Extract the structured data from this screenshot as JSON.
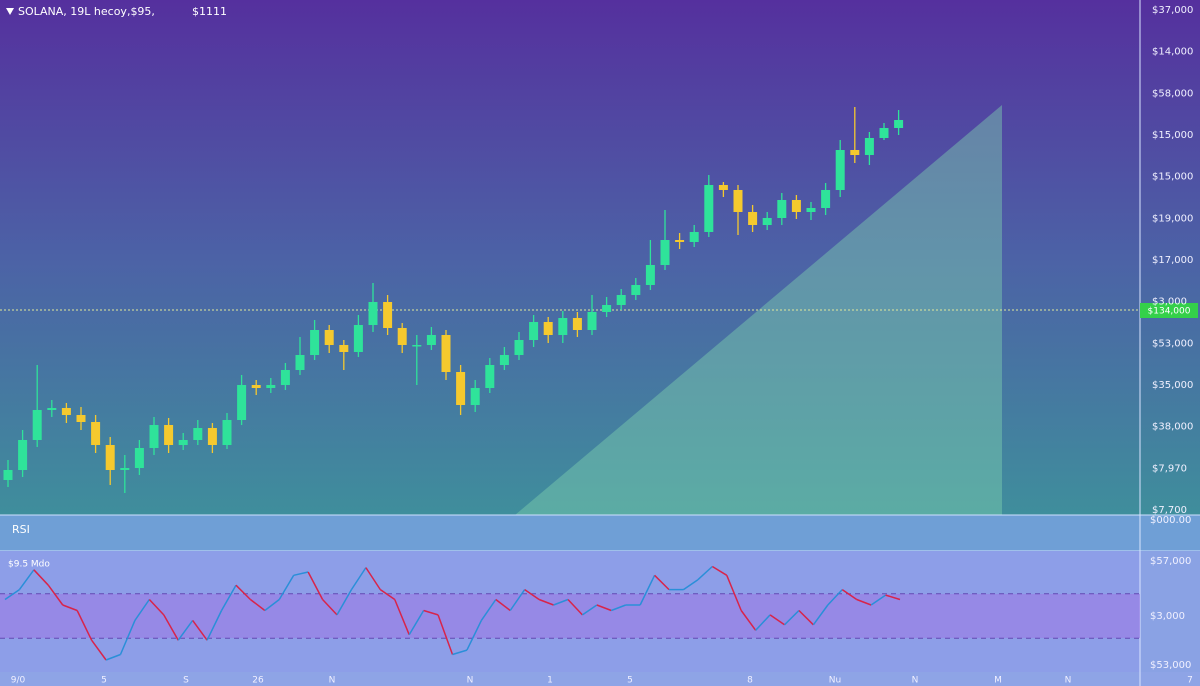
{
  "chart_data": [
    {
      "type": "candlestick",
      "title": "SOLANA, 19L hecoy,$95,",
      "subtitle": "$1111",
      "open": [
        35,
        45,
        75,
        105,
        107,
        100,
        93,
        70,
        45,
        47,
        67,
        90,
        70,
        75,
        87,
        70,
        95,
        130,
        127,
        130,
        145,
        160,
        185,
        170,
        163,
        190,
        213,
        187,
        170,
        170,
        180,
        143,
        110,
        127,
        150,
        160,
        175,
        193,
        180,
        197,
        185,
        203,
        210,
        220,
        230,
        250,
        275,
        273,
        283,
        330,
        325,
        303,
        290,
        297,
        315,
        303,
        307,
        325,
        365,
        360,
        377,
        387
      ],
      "high": [
        55,
        85,
        150,
        115,
        112,
        108,
        100,
        78,
        60,
        75,
        98,
        97,
        82,
        95,
        92,
        102,
        140,
        135,
        137,
        152,
        178,
        195,
        190,
        175,
        200,
        232,
        220,
        192,
        180,
        188,
        185,
        150,
        135,
        157,
        168,
        183,
        200,
        198,
        204,
        203,
        220,
        218,
        226,
        237,
        275,
        305,
        282,
        290,
        340,
        333,
        330,
        310,
        303,
        322,
        320,
        313,
        332,
        375,
        408,
        383,
        392,
        405
      ],
      "low": [
        28,
        38,
        68,
        98,
        92,
        85,
        62,
        30,
        22,
        40,
        60,
        62,
        65,
        70,
        62,
        66,
        90,
        120,
        122,
        125,
        140,
        155,
        162,
        145,
        158,
        183,
        180,
        162,
        130,
        165,
        135,
        100,
        103,
        122,
        145,
        155,
        168,
        172,
        172,
        178,
        180,
        198,
        205,
        215,
        225,
        245,
        266,
        268,
        278,
        318,
        280,
        283,
        285,
        290,
        296,
        295,
        300,
        318,
        352,
        350,
        375,
        380
      ],
      "close": [
        45,
        75,
        105,
        107,
        100,
        93,
        70,
        45,
        47,
        67,
        90,
        70,
        75,
        87,
        70,
        95,
        130,
        127,
        130,
        145,
        160,
        185,
        170,
        163,
        190,
        213,
        187,
        170,
        170,
        180,
        143,
        110,
        127,
        150,
        160,
        175,
        193,
        180,
        197,
        185,
        203,
        210,
        220,
        230,
        250,
        275,
        273,
        283,
        330,
        325,
        303,
        290,
        297,
        315,
        303,
        307,
        325,
        365,
        360,
        377,
        387,
        395
      ],
      "up_color": "#2fe39a",
      "down_color": "#f5c92e",
      "ylim": [
        0,
        515
      ],
      "price_labels": [
        "$37,000",
        "$14,000",
        "$58,000",
        "$15,000",
        "$15,000",
        "$19,000",
        "$17,000",
        "$3,000",
        "$53,000",
        "$35,000",
        "$38,000",
        "$7,970",
        "$7,700"
      ],
      "last_price_label": "$134,000"
    },
    {
      "type": "line",
      "title": "RSI",
      "subtitle": "$9.5 Mdo",
      "values": [
        65,
        74,
        92,
        78,
        60,
        55,
        28,
        10,
        15,
        46,
        65,
        51,
        28,
        46,
        28,
        55,
        78,
        65,
        55,
        65,
        87,
        90,
        65,
        51,
        74,
        94,
        74,
        65,
        33,
        55,
        51,
        15,
        19,
        46,
        65,
        55,
        74,
        65,
        60,
        65,
        51,
        60,
        55,
        60,
        60,
        87,
        74,
        74,
        83,
        95,
        87,
        55,
        37,
        51,
        42,
        55,
        42,
        60,
        74,
        65,
        60,
        69,
        65
      ],
      "up_color": "#2a8fd8",
      "down_color": "#d8244a",
      "ylim": [
        0,
        100
      ],
      "bands": [
        70,
        30
      ],
      "axis_labels": [
        "$000.00",
        "$57,000",
        "$3,000",
        "$53,000"
      ],
      "x_labels": [
        "9/0",
        "5",
        "S",
        "26",
        "N",
        "N",
        "1",
        "5",
        "8",
        "Nu",
        "N",
        "M",
        "N",
        "7"
      ]
    }
  ]
}
